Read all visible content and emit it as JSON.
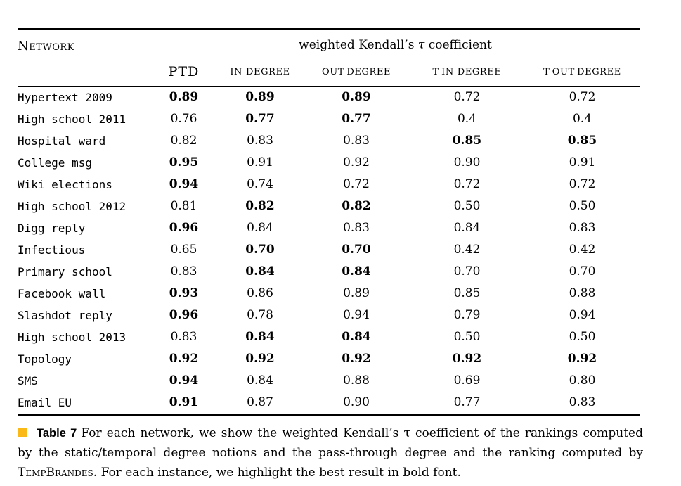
{
  "page": {
    "background": "#ffffff",
    "text_color": "#000000"
  },
  "table": {
    "header": {
      "network_label": "Network",
      "group_title_pre": "weighted Kendall’s ",
      "group_title_tau": "τ",
      "group_title_post": " coefficient",
      "columns": [
        "PTD",
        "IN-DEGREE",
        "OUT-DEGREE",
        "T-IN-DEGREE",
        "T-OUT-DEGREE"
      ]
    },
    "rows": [
      {
        "network": "Hypertext 2009",
        "values": [
          {
            "text": "0.89",
            "bold": true
          },
          {
            "text": "0.89",
            "bold": true
          },
          {
            "text": "0.89",
            "bold": true
          },
          {
            "text": "0.72",
            "bold": false
          },
          {
            "text": "0.72",
            "bold": false
          }
        ]
      },
      {
        "network": "High school 2011",
        "values": [
          {
            "text": "0.76",
            "bold": false
          },
          {
            "text": "0.77",
            "bold": true
          },
          {
            "text": "0.77",
            "bold": true
          },
          {
            "text": "0.4",
            "bold": false
          },
          {
            "text": "0.4",
            "bold": false
          }
        ]
      },
      {
        "network": "Hospital ward",
        "values": [
          {
            "text": "0.82",
            "bold": false
          },
          {
            "text": "0.83",
            "bold": false
          },
          {
            "text": "0.83",
            "bold": false
          },
          {
            "text": "0.85",
            "bold": true
          },
          {
            "text": "0.85",
            "bold": true
          }
        ]
      },
      {
        "network": "College msg",
        "values": [
          {
            "text": "0.95",
            "bold": true
          },
          {
            "text": "0.91",
            "bold": false
          },
          {
            "text": "0.92",
            "bold": false
          },
          {
            "text": "0.90",
            "bold": false
          },
          {
            "text": "0.91",
            "bold": false
          }
        ]
      },
      {
        "network": "Wiki elections",
        "values": [
          {
            "text": "0.94",
            "bold": true
          },
          {
            "text": "0.74",
            "bold": false
          },
          {
            "text": "0.72",
            "bold": false
          },
          {
            "text": "0.72",
            "bold": false
          },
          {
            "text": "0.72",
            "bold": false
          }
        ]
      },
      {
        "network": "High school 2012",
        "values": [
          {
            "text": "0.81",
            "bold": false
          },
          {
            "text": "0.82",
            "bold": true
          },
          {
            "text": "0.82",
            "bold": true
          },
          {
            "text": "0.50",
            "bold": false
          },
          {
            "text": "0.50",
            "bold": false
          }
        ]
      },
      {
        "network": "Digg reply",
        "values": [
          {
            "text": "0.96",
            "bold": true
          },
          {
            "text": "0.84",
            "bold": false
          },
          {
            "text": "0.83",
            "bold": false
          },
          {
            "text": "0.84",
            "bold": false
          },
          {
            "text": "0.83",
            "bold": false
          }
        ]
      },
      {
        "network": "Infectious",
        "values": [
          {
            "text": "0.65",
            "bold": false
          },
          {
            "text": "0.70",
            "bold": true
          },
          {
            "text": "0.70",
            "bold": true
          },
          {
            "text": "0.42",
            "bold": false
          },
          {
            "text": "0.42",
            "bold": false
          }
        ]
      },
      {
        "network": "Primary school",
        "values": [
          {
            "text": "0.83",
            "bold": false
          },
          {
            "text": "0.84",
            "bold": true
          },
          {
            "text": "0.84",
            "bold": true
          },
          {
            "text": "0.70",
            "bold": false
          },
          {
            "text": "0.70",
            "bold": false
          }
        ]
      },
      {
        "network": "Facebook wall",
        "values": [
          {
            "text": "0.93",
            "bold": true
          },
          {
            "text": "0.86",
            "bold": false
          },
          {
            "text": "0.89",
            "bold": false
          },
          {
            "text": "0.85",
            "bold": false
          },
          {
            "text": "0.88",
            "bold": false
          }
        ]
      },
      {
        "network": "Slashdot reply",
        "values": [
          {
            "text": "0.96",
            "bold": true
          },
          {
            "text": "0.78",
            "bold": false
          },
          {
            "text": "0.94",
            "bold": false
          },
          {
            "text": "0.79",
            "bold": false
          },
          {
            "text": "0.94",
            "bold": false
          }
        ]
      },
      {
        "network": "High school 2013",
        "values": [
          {
            "text": "0.83",
            "bold": false
          },
          {
            "text": "0.84",
            "bold": true
          },
          {
            "text": "0.84",
            "bold": true
          },
          {
            "text": "0.50",
            "bold": false
          },
          {
            "text": "0.50",
            "bold": false
          }
        ]
      },
      {
        "network": "Topology",
        "values": [
          {
            "text": "0.92",
            "bold": true
          },
          {
            "text": "0.92",
            "bold": true
          },
          {
            "text": "0.92",
            "bold": true
          },
          {
            "text": "0.92",
            "bold": true
          },
          {
            "text": "0.92",
            "bold": true
          }
        ]
      },
      {
        "network": "SMS",
        "values": [
          {
            "text": "0.94",
            "bold": true
          },
          {
            "text": "0.84",
            "bold": false
          },
          {
            "text": "0.88",
            "bold": false
          },
          {
            "text": "0.69",
            "bold": false
          },
          {
            "text": "0.80",
            "bold": false
          }
        ]
      },
      {
        "network": "Email EU",
        "values": [
          {
            "text": "0.91",
            "bold": true
          },
          {
            "text": "0.87",
            "bold": false
          },
          {
            "text": "0.90",
            "bold": false
          },
          {
            "text": "0.77",
            "bold": false
          },
          {
            "text": "0.83",
            "bold": false
          }
        ]
      }
    ]
  },
  "caption": {
    "marker_color": "#FBB917",
    "label": "Table 7",
    "text_before": "For each network, we show the weighted Kendall’s τ coefficient of the rankings computed by the static/temporal degree notions and the pass-through degree and the ranking computed by ",
    "brand": "TempBrandes",
    "text_after": ". For each instance, we highlight the best result in bold font."
  }
}
